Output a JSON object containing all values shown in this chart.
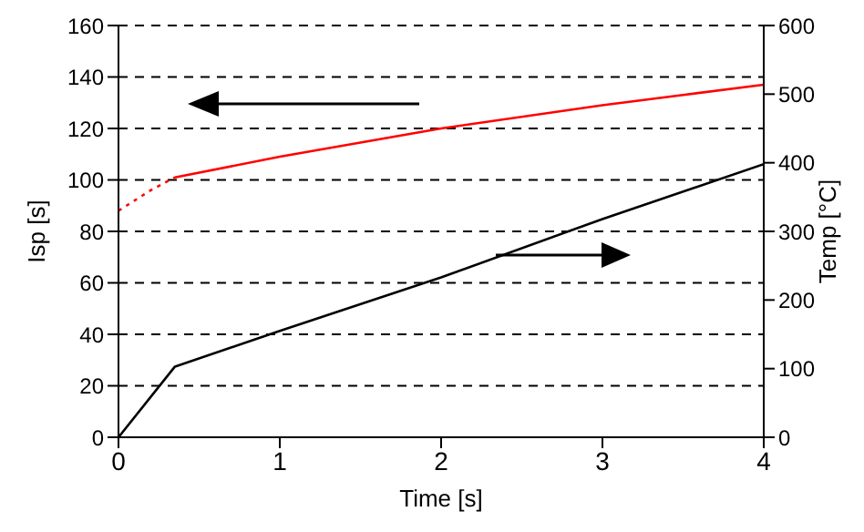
{
  "chart_data": {
    "type": "line",
    "xlabel": "Time [s]",
    "ylabel": "Isp [s]",
    "y2label": "Temp [°C]",
    "xlim": [
      0,
      4
    ],
    "xticks": [
      0,
      1,
      2,
      3,
      4
    ],
    "ylim": [
      0,
      160
    ],
    "yticks": [
      0,
      20,
      40,
      60,
      80,
      100,
      120,
      140,
      160
    ],
    "y2lim": [
      0,
      600
    ],
    "y2ticks": [
      0,
      100,
      200,
      300,
      400,
      500,
      600
    ],
    "grid": "y",
    "marker": "none",
    "series": [
      {
        "color": "#ff0000",
        "line_style": "dotted",
        "x": [
          0,
          0.1,
          0.2,
          0.35
        ],
        "values": [
          88,
          92,
          96,
          101
        ]
      },
      {
        "color": "#ff0000",
        "line_style": "solid",
        "x": [
          0.35,
          1,
          2,
          3,
          3.5,
          4
        ],
        "values": [
          101,
          109,
          120,
          129,
          133,
          137
        ]
      },
      {
        "color": "#000000",
        "line_style": "solid",
        "axis": "y2",
        "x": [
          0,
          0.35,
          1,
          2,
          3,
          4
        ],
        "values": [
          0,
          103,
          155,
          233,
          318,
          398
        ]
      }
    ]
  }
}
